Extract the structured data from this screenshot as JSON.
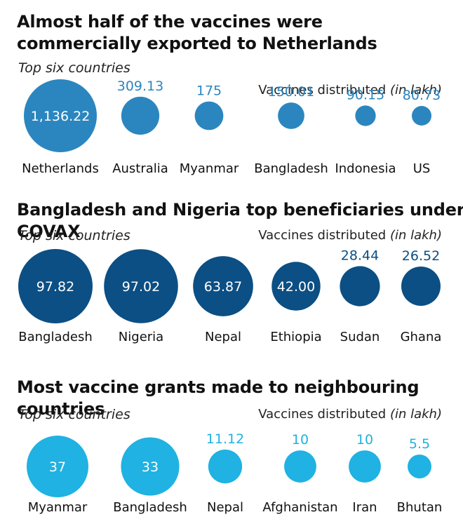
{
  "chart_data": [
    {
      "type": "bubble",
      "title": "Almost half of the vaccines were commercially exported to Netherlands",
      "subtitle": "Top six countries",
      "unit_label": "Vaccines distributed",
      "unit_suffix": "(in lakh)",
      "color": "#2b86bf",
      "label_on_bubble_color": "#ffffff",
      "label_above_color": "#2b86bf",
      "categories": [
        "Netherlands",
        "Australia",
        "Myanmar",
        "Bangladesh",
        "Indonesia",
        "US"
      ],
      "values": [
        1136.22,
        309.13,
        175,
        150.01,
        90.15,
        80.73
      ],
      "value_labels": [
        "1,136.22",
        "309.13",
        "175",
        "150.01",
        "90.15",
        "80.73"
      ]
    },
    {
      "type": "bubble",
      "title": "Bangladesh and Nigeria top beneficiaries under COVAX",
      "subtitle": "Top six countries",
      "unit_label": "Vaccines distributed",
      "unit_suffix": "(in lakh)",
      "color": "#0b4f84",
      "label_on_bubble_color": "#ffffff",
      "label_above_color": "#0b4f84",
      "categories": [
        "Bangladesh",
        "Nigeria",
        "Nepal",
        "Ethiopia",
        "Sudan",
        "Ghana"
      ],
      "values": [
        97.82,
        97.02,
        63.87,
        42.0,
        28.44,
        26.52
      ],
      "value_labels": [
        "97.82",
        "97.02",
        "63.87",
        "42.00",
        "28.44",
        "26.52"
      ]
    },
    {
      "type": "bubble",
      "title": "Most vaccine grants made to neighbouring countries",
      "subtitle": "Top six countries",
      "unit_label": "Vaccines distributed",
      "unit_suffix": "(in lakh)",
      "color": "#1fb2e2",
      "label_on_bubble_color": "#ffffff",
      "label_above_color": "#1fb2e2",
      "categories": [
        "Myanmar",
        "Bangladesh",
        "Nepal",
        "Afghanistan",
        "Iran",
        "Bhutan"
      ],
      "values": [
        37,
        33,
        11.12,
        10,
        10,
        5.5
      ],
      "value_labels": [
        "37",
        "33",
        "11.12",
        "10",
        "10",
        "5.5"
      ]
    }
  ]
}
